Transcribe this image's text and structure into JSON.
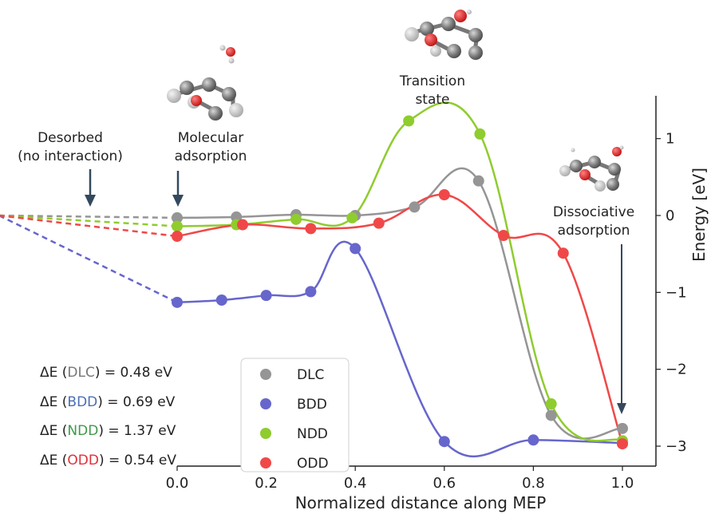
{
  "chart_data": {
    "type": "line",
    "xlabel": "Normalized distance along MEP",
    "ylabel": "Energy [eV]",
    "xlim": [
      0.0,
      1.0
    ],
    "ylim": [
      -3.1,
      1.45
    ],
    "x_ticks": [
      0.0,
      0.2,
      0.4,
      0.6,
      0.8,
      1.0
    ],
    "x_tick_labels": [
      "0.0",
      "0.2",
      "0.4",
      "0.6",
      "0.8",
      "1.0"
    ],
    "y_ticks": [
      1,
      0,
      -1,
      -2,
      -3
    ],
    "y_tick_labels": [
      "1",
      "0",
      "−1",
      "−2",
      "−3"
    ],
    "y_axis_side": "right",
    "desorbed_reference": {
      "x": -0.4,
      "y": 0.0
    },
    "series": [
      {
        "name": "DLC",
        "color": "#959595",
        "x": [
          0.0,
          0.133,
          0.267,
          0.4,
          0.533,
          0.677,
          0.84,
          1.0
        ],
        "y": [
          -0.03,
          -0.02,
          0.01,
          0.0,
          0.11,
          0.45,
          -2.6,
          -2.77
        ]
      },
      {
        "name": "BDD",
        "color": "#6666cc",
        "x": [
          0.0,
          0.1,
          0.2,
          0.3,
          0.4,
          0.6,
          0.8,
          1.0
        ],
        "y": [
          -1.13,
          -1.1,
          -1.04,
          -0.99,
          -0.43,
          -2.94,
          -2.92,
          -2.96
        ]
      },
      {
        "name": "NDD",
        "color": "#8fcc2e",
        "x": [
          0.0,
          0.133,
          0.267,
          0.393,
          0.52,
          0.68,
          0.84,
          1.0
        ],
        "y": [
          -0.14,
          -0.12,
          -0.05,
          -0.03,
          1.23,
          1.06,
          -2.45,
          -2.93
        ]
      },
      {
        "name": "ODD",
        "color": "#f04848",
        "x": [
          0.0,
          0.147,
          0.3,
          0.453,
          0.6,
          0.733,
          0.867,
          1.0
        ],
        "y": [
          -0.27,
          -0.12,
          -0.17,
          -0.1,
          0.27,
          -0.26,
          -0.49,
          -2.97
        ]
      }
    ],
    "annotations": [
      {
        "id": "desorbed",
        "lines": [
          "Desorbed",
          "(no interaction)"
        ]
      },
      {
        "id": "molecular",
        "lines": [
          "Molecular",
          "adsorption"
        ]
      },
      {
        "id": "transition",
        "lines": [
          "Transition",
          "state"
        ]
      },
      {
        "id": "dissociative",
        "lines": [
          "Dissociative",
          "adsorption"
        ]
      }
    ],
    "barriers": [
      {
        "prefix": "ΔE (",
        "label": "DLC",
        "suffix": ") = 0.48 eV",
        "color": "#777777"
      },
      {
        "prefix": "ΔE (",
        "label": "BDD",
        "suffix": ") = 0.69 eV",
        "color": "#4a6fb5"
      },
      {
        "prefix": "ΔE (",
        "label": "NDD",
        "suffix": ") = 1.37 eV",
        "color": "#3f9a4a"
      },
      {
        "prefix": "ΔE (",
        "label": "ODD",
        "suffix": ") = 0.54 eV",
        "color": "#e0303a"
      }
    ],
    "legend": {
      "position": "lower-center",
      "entries": [
        "DLC",
        "BDD",
        "NDD",
        "ODD"
      ]
    },
    "grid": false
  }
}
